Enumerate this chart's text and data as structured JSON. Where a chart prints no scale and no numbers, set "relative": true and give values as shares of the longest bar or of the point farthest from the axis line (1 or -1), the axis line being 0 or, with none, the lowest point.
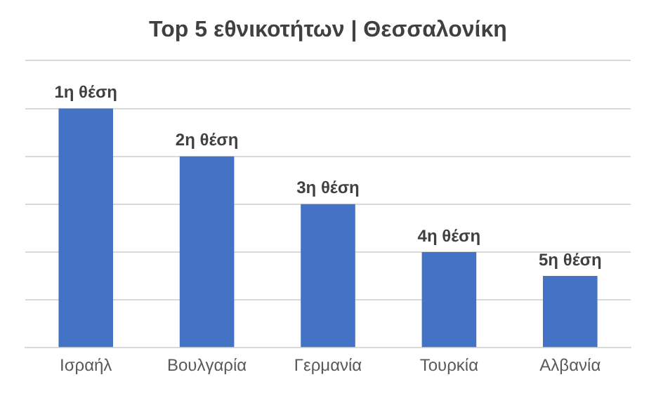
{
  "chart_data": {
    "type": "bar",
    "title": "Top 5 εθνικοτήτων | Θεσσαλονίκη",
    "categories": [
      "Ισραήλ",
      "Βουλγαρία",
      "Γερμανία",
      "Τουρκία",
      "Αλβανία"
    ],
    "values": [
      1,
      0.8,
      0.6,
      0.4,
      0.3
    ],
    "color": "#4472c4",
    "relative": true,
    "grid": "y",
    "legend": false,
    "annotations": [
      {
        "text": "1η θέση",
        "x": "Ισραήλ",
        "y": 1
      },
      {
        "text": "2η θέση",
        "x": "Βουλγαρία",
        "y": 0.8
      },
      {
        "text": "3η θέση",
        "x": "Γερμανία",
        "y": 0.6
      },
      {
        "text": "4η θέση",
        "x": "Τουρκία",
        "y": 0.4
      },
      {
        "text": "5η θέση",
        "x": "Αλβανία",
        "y": 0.3
      }
    ]
  }
}
